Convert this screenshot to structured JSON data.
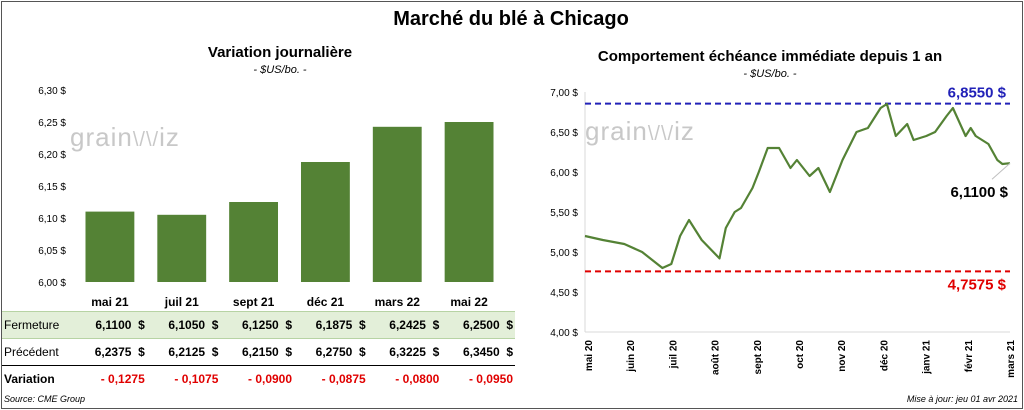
{
  "title": "Marché du blé à Chicago",
  "watermark": {
    "left": "grain",
    "right": "iz",
    "mark": "\\/\\/"
  },
  "footer": {
    "source": "Source: CME Group",
    "updated": "Mise à jour: jeu 01 avr 2021"
  },
  "chart_data": [
    {
      "type": "bar",
      "title": "Variation journalière",
      "subtitle": "- $US/bo. -",
      "categories": [
        "mai 21",
        "juil 21",
        "sept 21",
        "déc 21",
        "mars 22",
        "mai 22"
      ],
      "values": [
        6.11,
        6.105,
        6.125,
        6.1875,
        6.2425,
        6.25
      ],
      "ylim": [
        6.0,
        6.3
      ],
      "yticks": [
        "6,00 $",
        "6,05 $",
        "6,10 $",
        "6,15 $",
        "6,20 $",
        "6,25 $",
        "6,30 $"
      ],
      "bar_color": "#548235",
      "table": {
        "rows": [
          {
            "label": "Fermeture",
            "cells": [
              "6,1100  $",
              "6,1050  $",
              "6,1250  $",
              "6,1875  $",
              "6,2425  $",
              "6,2500  $"
            ]
          },
          {
            "label": "Précédent",
            "cells": [
              "6,2375  $",
              "6,2125  $",
              "6,2150  $",
              "6,2750  $",
              "6,3225  $",
              "6,3450  $"
            ]
          },
          {
            "label": "Variation",
            "cells": [
              "- 0,1275",
              "- 0,1075",
              "- 0,0900",
              "- 0,0875",
              "- 0,0800",
              "- 0,0950"
            ]
          }
        ]
      }
    },
    {
      "type": "line",
      "title": "Comportement  échéance immédiate depuis 1 an",
      "subtitle": "- $US/bo. -",
      "x": [
        "2020-05-01",
        "2020-05-15",
        "2020-06-01",
        "2020-06-15",
        "2020-07-01",
        "2020-07-08",
        "2020-07-15",
        "2020-07-22",
        "2020-08-01",
        "2020-08-15",
        "2020-08-20",
        "2020-08-27",
        "2020-09-01",
        "2020-09-10",
        "2020-09-15",
        "2020-09-22",
        "2020-10-01",
        "2020-10-10",
        "2020-10-15",
        "2020-10-25",
        "2020-11-01",
        "2020-11-10",
        "2020-11-20",
        "2020-12-01",
        "2020-12-10",
        "2020-12-20",
        "2020-12-25",
        "2021-01-01",
        "2021-01-10",
        "2021-01-15",
        "2021-01-25",
        "2021-02-01",
        "2021-02-10",
        "2021-02-15",
        "2021-02-25",
        "2021-03-01",
        "2021-03-05",
        "2021-03-15",
        "2021-03-22",
        "2021-03-26",
        "2021-04-01"
      ],
      "values": [
        5.2,
        5.15,
        5.1,
        5.0,
        4.8,
        4.85,
        5.2,
        5.4,
        5.15,
        4.92,
        5.3,
        5.5,
        5.55,
        5.8,
        6.0,
        6.3,
        6.3,
        6.05,
        6.15,
        5.95,
        6.05,
        5.75,
        6.15,
        6.5,
        6.55,
        6.8,
        6.85,
        6.45,
        6.6,
        6.4,
        6.45,
        6.5,
        6.7,
        6.8,
        6.45,
        6.55,
        6.45,
        6.35,
        6.15,
        6.1,
        6.11
      ],
      "series_color": "#548235",
      "ylim": [
        4.0,
        7.0
      ],
      "yticks": [
        "4,00 $",
        "4,50 $",
        "5,00 $",
        "5,50 $",
        "6,00 $",
        "6,50 $",
        "7,00 $"
      ],
      "xticks": [
        "mai 20",
        "juin 20",
        "juil 20",
        "août 20",
        "sept 20",
        "oct 20",
        "nov 20",
        "déc 20",
        "janv 21",
        "févr 21",
        "mars 21"
      ],
      "max_line": {
        "value": 6.855,
        "label": "6,8550  $",
        "color": "#2222b8"
      },
      "min_line": {
        "value": 4.7575,
        "label": "4,7575  $",
        "color": "#e00000"
      },
      "last_label": "6,1100 $"
    }
  ]
}
